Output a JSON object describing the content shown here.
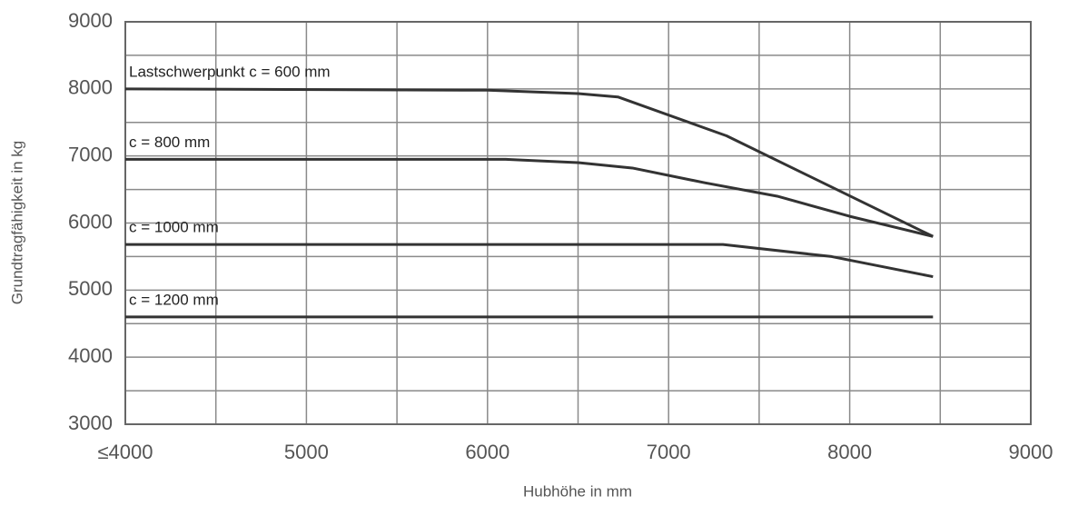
{
  "chart_data": {
    "type": "line",
    "x_label": "Hubhöhe in mm",
    "y_label": "Grundtragfähigkeit in kg",
    "xlim": [
      4000,
      9000
    ],
    "xticks": [
      {
        "value": 4000,
        "label": "≤4000"
      },
      5000,
      6000,
      7000,
      8000,
      9000
    ],
    "ylim": [
      3000,
      9000
    ],
    "yticks": [
      3000,
      4000,
      5000,
      6000,
      7000,
      8000,
      9000
    ],
    "grid": true,
    "series": [
      {
        "name": "Lastschwerpunkt c = 600 mm",
        "color": "#333333",
        "x": [
          4000,
          6000,
          6500,
          6720,
          7320,
          8460
        ],
        "values": [
          8000,
          7980,
          7930,
          7880,
          7300,
          5800
        ]
      },
      {
        "name": "c = 800 mm",
        "color": "#333333",
        "x": [
          4000,
          6100,
          6500,
          6800,
          7200,
          7600,
          8000,
          8460
        ],
        "values": [
          6950,
          6950,
          6900,
          6820,
          6600,
          6400,
          6100,
          5800
        ]
      },
      {
        "name": "c = 1000 mm",
        "color": "#333333",
        "x": [
          4000,
          7300,
          7900,
          8460
        ],
        "values": [
          5680,
          5680,
          5500,
          5200
        ]
      },
      {
        "name": "c = 1200 mm",
        "color": "#333333",
        "x": [
          4000,
          8460
        ],
        "values": [
          4600,
          4600
        ]
      }
    ]
  }
}
